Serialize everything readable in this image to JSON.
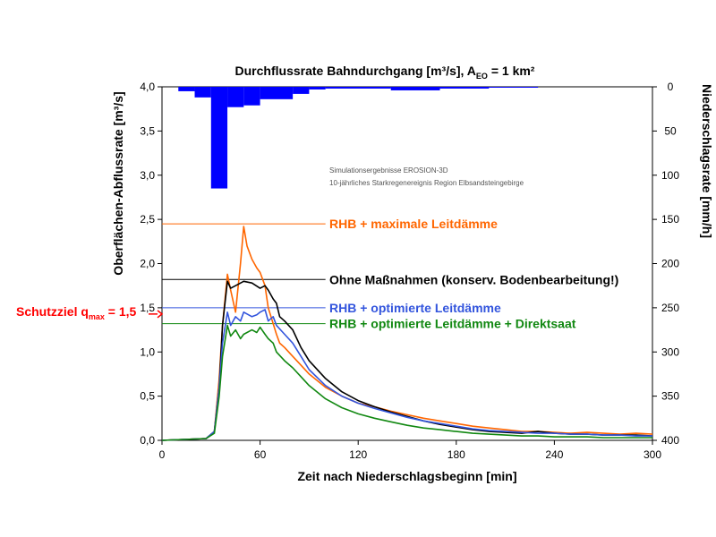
{
  "chart_data": {
    "type": "line",
    "title": "Durchflussrate Bahndurchgang [m³/s], A",
    "title_sub": "EO",
    "title_suffix": " = 1 km²",
    "xlabel": "Zeit nach Niederschlagsbeginn [min]",
    "ylabel": "Oberflächen-Abflussrate [m³/s]",
    "y2label": "Niederschlagsrate [mm/h]",
    "xlim": [
      0,
      300
    ],
    "ylim": [
      0,
      4.0
    ],
    "y2lim": [
      0,
      400
    ],
    "y2_inverted": true,
    "x_ticks": [
      "0",
      "60",
      "120",
      "180",
      "240",
      "300"
    ],
    "y_ticks": [
      "0,0",
      "0,5",
      "1,0",
      "1,5",
      "2,0",
      "2,5",
      "3,0",
      "3,5",
      "4,0"
    ],
    "y2_ticks": [
      "0",
      "50",
      "100",
      "150",
      "200",
      "250",
      "300",
      "350",
      "400"
    ],
    "note_lines": [
      "Simulationsergebnisse EROSION-3D",
      "10-jährliches Starkregenereignis Region Elbsandsteingebirge"
    ],
    "schutzziel": {
      "text": "Schutzziel q",
      "sub": "max",
      "suffix": " = 1,5",
      "value": 1.5,
      "color": "#ff0000"
    },
    "rain_bars": {
      "name": "Niederschlagsrate",
      "color": "#0000ff",
      "bins": [
        {
          "x0": 10,
          "x1": 20,
          "value": 5
        },
        {
          "x0": 20,
          "x1": 30,
          "value": 12
        },
        {
          "x0": 30,
          "x1": 40,
          "value": 115
        },
        {
          "x0": 40,
          "x1": 50,
          "value": 23
        },
        {
          "x0": 50,
          "x1": 60,
          "value": 21
        },
        {
          "x0": 60,
          "x1": 80,
          "value": 14
        },
        {
          "x0": 80,
          "x1": 90,
          "value": 8
        },
        {
          "x0": 90,
          "x1": 100,
          "value": 3
        },
        {
          "x0": 100,
          "x1": 140,
          "value": 2
        },
        {
          "x0": 140,
          "x1": 170,
          "value": 4
        },
        {
          "x0": 170,
          "x1": 200,
          "value": 2
        },
        {
          "x0": 200,
          "x1": 230,
          "value": 1
        }
      ]
    },
    "series": [
      {
        "name": "RHB + maximale Leitdämme",
        "color": "#ff6600",
        "ref_value": 2.45,
        "x": [
          0,
          27,
          32,
          35,
          37,
          40,
          42,
          45,
          48,
          50,
          52,
          55,
          58,
          60,
          63,
          65,
          70,
          72,
          75,
          80,
          85,
          90,
          100,
          110,
          120,
          130,
          140,
          150,
          160,
          170,
          180,
          190,
          200,
          210,
          220,
          230,
          240,
          250,
          260,
          270,
          280,
          290,
          300
        ],
        "y": [
          0,
          0.02,
          0.1,
          0.7,
          1.3,
          1.88,
          1.7,
          1.45,
          2.0,
          2.42,
          2.2,
          2.05,
          1.95,
          1.9,
          1.75,
          1.5,
          1.2,
          1.1,
          1.05,
          0.95,
          0.85,
          0.75,
          0.6,
          0.5,
          0.42,
          0.38,
          0.33,
          0.29,
          0.25,
          0.22,
          0.19,
          0.16,
          0.14,
          0.12,
          0.1,
          0.1,
          0.09,
          0.08,
          0.09,
          0.08,
          0.07,
          0.08,
          0.07
        ]
      },
      {
        "name": "Ohne Maßnahmen  (konserv. Bodenbearbeitung!)",
        "color": "#000000",
        "ref_value": 1.82,
        "x": [
          0,
          27,
          32,
          35,
          37,
          40,
          42,
          45,
          50,
          55,
          60,
          63,
          65,
          68,
          70,
          72,
          75,
          80,
          85,
          90,
          100,
          110,
          120,
          130,
          140,
          150,
          160,
          170,
          180,
          190,
          200,
          210,
          220,
          230,
          240,
          250,
          260,
          270,
          280,
          290,
          300
        ],
        "y": [
          0,
          0.02,
          0.1,
          0.6,
          1.3,
          1.8,
          1.72,
          1.75,
          1.8,
          1.78,
          1.72,
          1.75,
          1.7,
          1.6,
          1.55,
          1.4,
          1.35,
          1.25,
          1.05,
          0.9,
          0.7,
          0.55,
          0.45,
          0.38,
          0.32,
          0.27,
          0.22,
          0.18,
          0.15,
          0.12,
          0.1,
          0.09,
          0.08,
          0.1,
          0.08,
          0.07,
          0.07,
          0.06,
          0.06,
          0.06,
          0.05
        ]
      },
      {
        "name": "RHB + optimierte Leitdämme",
        "color": "#3355dd",
        "ref_value": 1.5,
        "x": [
          0,
          27,
          32,
          35,
          37,
          40,
          42,
          45,
          48,
          50,
          55,
          58,
          60,
          63,
          65,
          68,
          70,
          75,
          80,
          85,
          90,
          100,
          110,
          120,
          130,
          140,
          150,
          160,
          170,
          180,
          190,
          200,
          210,
          220,
          230,
          240,
          250,
          260,
          270,
          280,
          290,
          300
        ],
        "y": [
          0,
          0.02,
          0.1,
          0.6,
          1.1,
          1.45,
          1.3,
          1.4,
          1.35,
          1.45,
          1.4,
          1.42,
          1.45,
          1.48,
          1.35,
          1.4,
          1.3,
          1.2,
          1.1,
          0.95,
          0.8,
          0.62,
          0.5,
          0.42,
          0.36,
          0.31,
          0.26,
          0.22,
          0.19,
          0.16,
          0.13,
          0.11,
          0.1,
          0.09,
          0.08,
          0.08,
          0.07,
          0.07,
          0.06,
          0.06,
          0.05,
          0.05
        ]
      },
      {
        "name": "RHB + optimierte Leitdämme + Direktsaat",
        "color": "#118811",
        "ref_value": 1.32,
        "x": [
          0,
          27,
          32,
          35,
          37,
          40,
          42,
          45,
          48,
          50,
          55,
          58,
          60,
          63,
          65,
          68,
          70,
          75,
          80,
          85,
          90,
          100,
          110,
          120,
          130,
          140,
          150,
          160,
          170,
          180,
          190,
          200,
          210,
          220,
          230,
          240,
          250,
          260,
          270,
          280,
          290,
          300
        ],
        "y": [
          0,
          0.02,
          0.08,
          0.5,
          0.95,
          1.3,
          1.18,
          1.25,
          1.15,
          1.2,
          1.25,
          1.22,
          1.28,
          1.2,
          1.15,
          1.1,
          1.0,
          0.9,
          0.82,
          0.72,
          0.62,
          0.47,
          0.37,
          0.3,
          0.25,
          0.21,
          0.17,
          0.14,
          0.12,
          0.1,
          0.08,
          0.07,
          0.06,
          0.05,
          0.05,
          0.04,
          0.04,
          0.04,
          0.03,
          0.03,
          0.03,
          0.03
        ]
      }
    ]
  }
}
